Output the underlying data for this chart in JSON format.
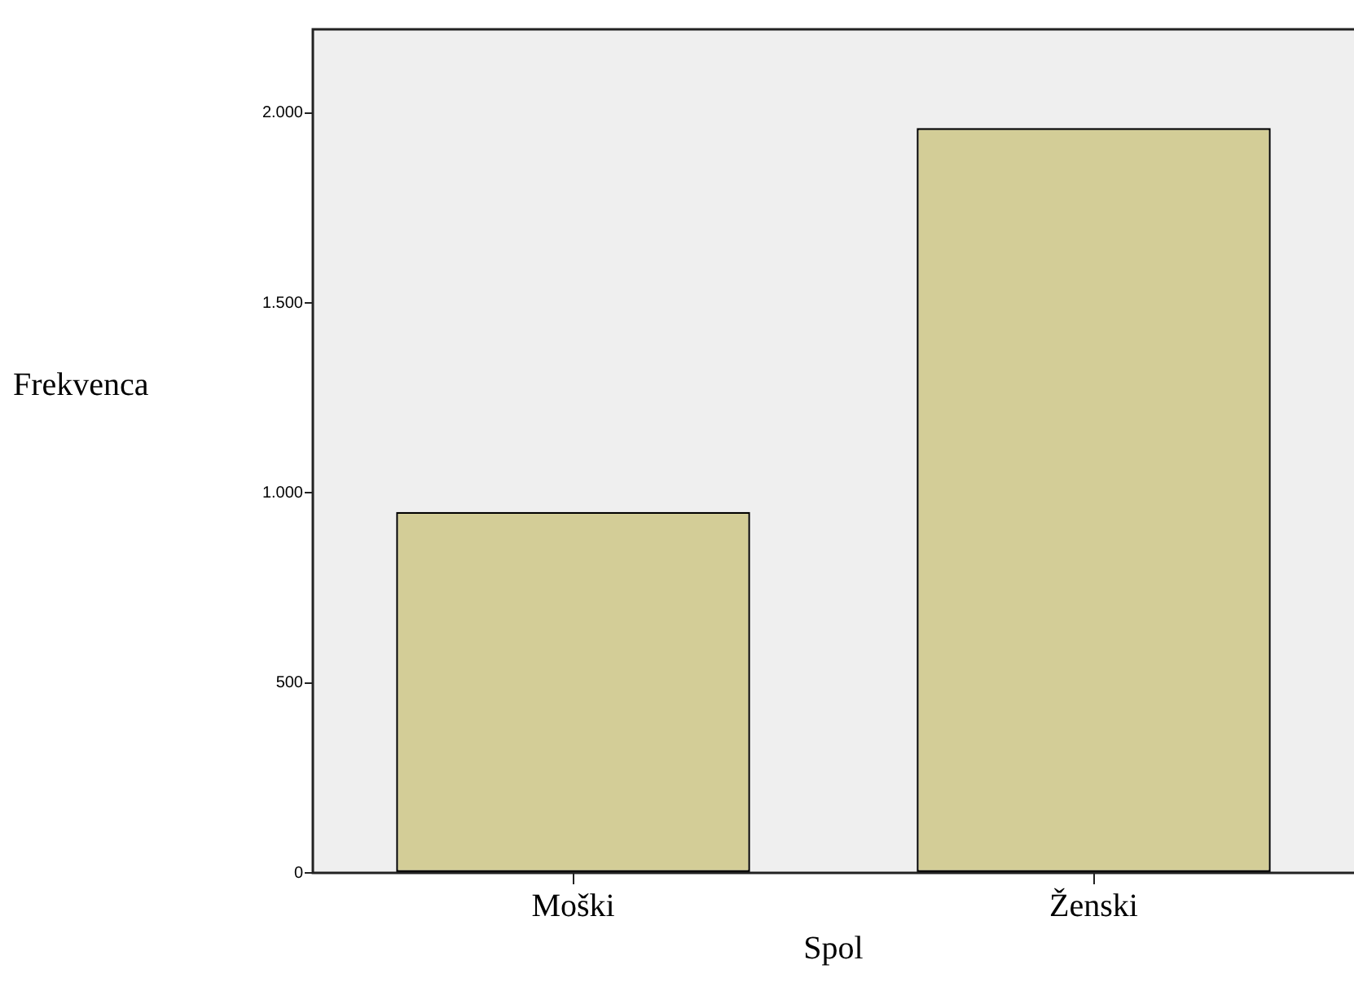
{
  "chart_data": {
    "type": "bar",
    "xlabel": "Spol",
    "ylabel": "Frekvenca",
    "categories": [
      "Moški",
      "Ženski"
    ],
    "values": [
      950,
      1960
    ],
    "color": "#d3cd97",
    "ylim": [
      0,
      2220
    ],
    "yticks": [
      0,
      500,
      {
        "value": 1000,
        "label": "1.000"
      },
      {
        "value": 1500,
        "label": "1.500"
      },
      {
        "value": 2000,
        "label": "2.000"
      }
    ],
    "legend": false
  }
}
